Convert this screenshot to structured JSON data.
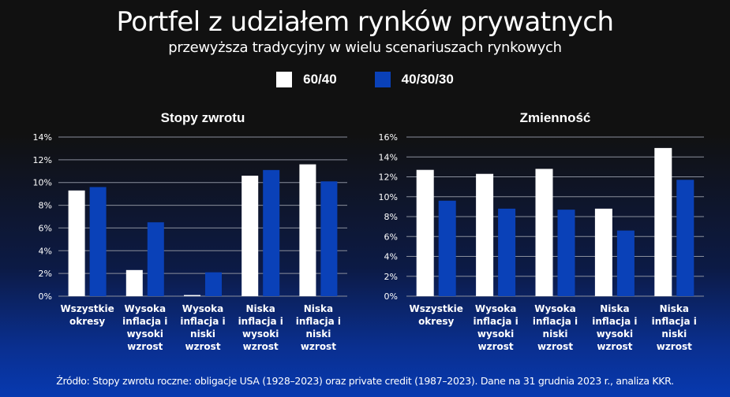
{
  "header": {
    "title": "Portfel  z udziałem rynków prywatnych",
    "subtitle": "przewyższa tradycyjny  w wielu scenariuszach rynkowych"
  },
  "legend": [
    {
      "label": "60/40",
      "color": "#ffffff"
    },
    {
      "label": "40/30/30",
      "color": "#0a41b8"
    }
  ],
  "chart_data": [
    {
      "type": "bar",
      "title": "Stopy zwrotu",
      "categories": [
        [
          "Wszystkie",
          "okresy"
        ],
        [
          "Wysoka",
          "inflacja i",
          "wysoki",
          "wzrost"
        ],
        [
          "Wysoka",
          "inflacja i",
          "niski",
          "wzrost"
        ],
        [
          "Niska",
          "inflacja i",
          "wysoki",
          "wzrost"
        ],
        [
          "Niska",
          "inflacja i",
          "niski",
          "wzrost"
        ]
      ],
      "series": [
        {
          "name": "60/40",
          "color": "#ffffff",
          "values": [
            9.3,
            2.3,
            0.1,
            10.6,
            11.6
          ]
        },
        {
          "name": "40/30/30",
          "color": "#0a41b8",
          "values": [
            9.6,
            6.5,
            2.1,
            11.1,
            10.1
          ]
        }
      ],
      "ylim": [
        0,
        14
      ],
      "yticks": [
        0,
        2,
        4,
        6,
        8,
        10,
        12,
        14
      ],
      "ytick_labels": [
        "0%",
        "2%",
        "4%",
        "6%",
        "8%",
        "10%",
        "12%",
        "14%"
      ],
      "xlabel": "",
      "ylabel": "",
      "grid": true,
      "legend": "top-center"
    },
    {
      "type": "bar",
      "title": "Zmienność",
      "categories": [
        [
          "Wszystkie",
          "okresy"
        ],
        [
          "Wysoka",
          "inflacja i",
          "wysoki",
          "wzrost"
        ],
        [
          "Wysoka",
          "inflacja i",
          "niski",
          "wzrost"
        ],
        [
          "Niska",
          "inflacja i",
          "wysoki",
          "wzrost"
        ],
        [
          "Niska",
          "inflacja i",
          "niski",
          "wzrost"
        ]
      ],
      "series": [
        {
          "name": "60/40",
          "color": "#ffffff",
          "values": [
            12.7,
            12.3,
            12.8,
            8.8,
            14.9
          ]
        },
        {
          "name": "40/30/30",
          "color": "#0a41b8",
          "values": [
            9.6,
            8.8,
            8.7,
            6.6,
            11.7
          ]
        }
      ],
      "ylim": [
        0,
        16
      ],
      "yticks": [
        0,
        2,
        4,
        6,
        8,
        10,
        12,
        14,
        16
      ],
      "ytick_labels": [
        "0%",
        "2%",
        "4%",
        "6%",
        "8%",
        "10%",
        "12%",
        "14%",
        "16%"
      ],
      "xlabel": "",
      "ylabel": "",
      "grid": true,
      "legend": "top-center"
    }
  ],
  "footer": {
    "source": "Źródło: Stopy zwrotu roczne: obligacje USA (1928–2023) oraz private credit (1987–2023). Dane na 31 grudnia 2023 r., analiza KKR."
  }
}
